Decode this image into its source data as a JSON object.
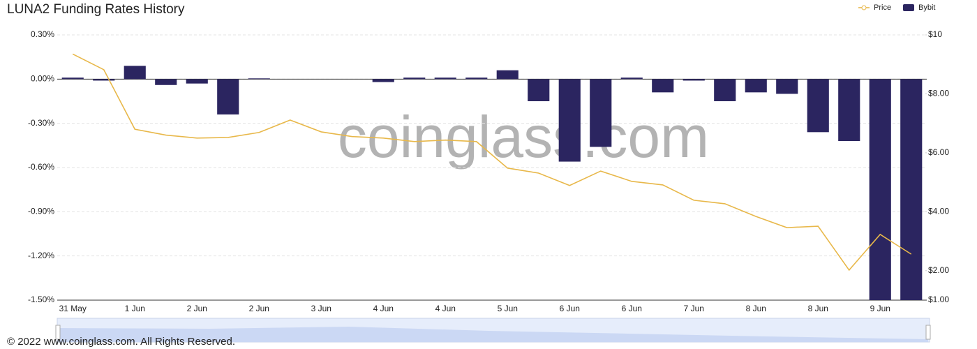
{
  "chart_data": {
    "type": "bar-line",
    "title": "LUNA2 Funding Rates History",
    "watermark": "coinglass.com",
    "footer": "© 2022 www.coinglass.com. All Rights Reserved.",
    "categories": [
      "31 May",
      null,
      "1 Jun",
      null,
      "2 Jun",
      null,
      "2 Jun",
      null,
      "3 Jun",
      null,
      "4 Jun",
      null,
      "4 Jun",
      null,
      "5 Jun",
      null,
      "6 Jun",
      null,
      "6 Jun",
      null,
      "7 Jun",
      null,
      "8 Jun",
      null,
      "8 Jun",
      null,
      "9 Jun",
      null
    ],
    "series": [
      {
        "name": "Price",
        "type": "line",
        "axis": "y2",
        "color": "#e8b84a",
        "values": [
          9.35,
          8.82,
          6.8,
          6.6,
          6.5,
          6.52,
          6.69,
          7.11,
          6.71,
          6.55,
          6.5,
          6.38,
          6.43,
          6.38,
          5.48,
          5.31,
          4.89,
          5.38,
          5.03,
          4.91,
          4.39,
          4.27,
          3.84,
          3.46,
          3.51,
          2.02,
          3.23,
          2.56
        ]
      },
      {
        "name": "Bybit",
        "type": "bar",
        "color": "#2b2560",
        "values": [
          0.01,
          -0.01,
          0.09,
          -0.04,
          -0.03,
          -0.24,
          0.005,
          0,
          0,
          0,
          -0.02,
          0.01,
          0.01,
          0.01,
          0.06,
          -0.15,
          -0.56,
          -0.46,
          0.01,
          -0.09,
          -0.01,
          -0.15,
          -0.09,
          -0.1,
          -0.36,
          -0.42,
          -1.5,
          -1.5
        ]
      }
    ],
    "ylim": [
      -1.5,
      0.3
    ],
    "yticks": [
      {
        "value": -1.5,
        "label": "-1.50%"
      },
      {
        "value": -1.2,
        "label": "-1.20%"
      },
      {
        "value": -0.9,
        "label": "-0.90%"
      },
      {
        "value": -0.6,
        "label": "-0.60%"
      },
      {
        "value": -0.3,
        "label": "-0.30%"
      },
      {
        "value": 0,
        "label": "0.00%"
      },
      {
        "value": 0.3,
        "label": "0.30%"
      }
    ],
    "y2lim": [
      1,
      10
    ],
    "y2ticks": [
      {
        "value": 1,
        "label": "$1.00"
      },
      {
        "value": 2,
        "label": "$2.00"
      },
      {
        "value": 4,
        "label": "$4.00"
      },
      {
        "value": 6,
        "label": "$6.00"
      },
      {
        "value": 8,
        "label": "$8.00"
      },
      {
        "value": 10,
        "label": "$10"
      }
    ],
    "grid": true,
    "legend": "top-right"
  }
}
